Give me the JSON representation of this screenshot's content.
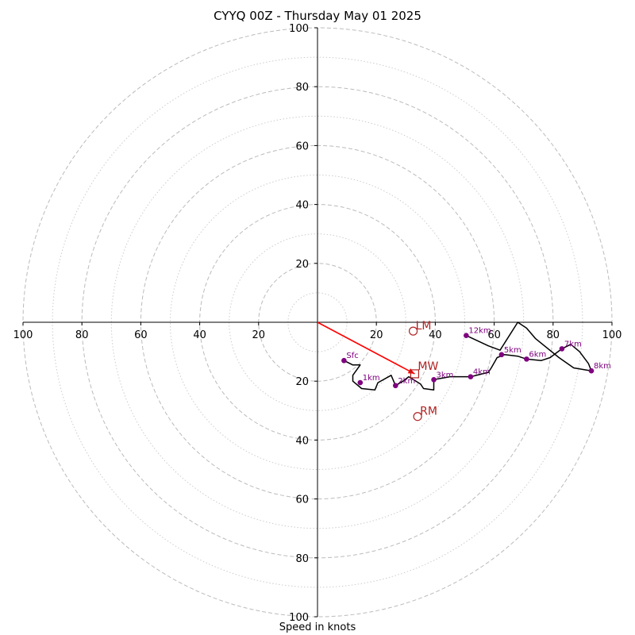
{
  "chart_data": {
    "type": "scatter",
    "title": "CYYQ 00Z - Thursday May 01 2025",
    "xlabel": "Speed in knots",
    "ylabel": "",
    "xlim": [
      -100,
      100
    ],
    "ylim": [
      -100,
      100
    ],
    "ring_major": [
      20,
      40,
      60,
      80,
      100
    ],
    "ring_minor": [
      10,
      30,
      50,
      70,
      90
    ],
    "x_ticks": [
      {
        "v": -100,
        "t": "100"
      },
      {
        "v": -80,
        "t": "80"
      },
      {
        "v": -60,
        "t": "60"
      },
      {
        "v": -40,
        "t": "40"
      },
      {
        "v": -20,
        "t": "20"
      },
      {
        "v": 20,
        "t": "20"
      },
      {
        "v": 40,
        "t": "40"
      },
      {
        "v": 60,
        "t": "60"
      },
      {
        "v": 80,
        "t": "80"
      },
      {
        "v": 100,
        "t": "100"
      }
    ],
    "y_ticks": [
      {
        "v": 100,
        "t": "100"
      },
      {
        "v": 80,
        "t": "80"
      },
      {
        "v": 60,
        "t": "60"
      },
      {
        "v": 40,
        "t": "40"
      },
      {
        "v": 20,
        "t": "20"
      },
      {
        "v": -20,
        "t": "20"
      },
      {
        "v": -40,
        "t": "40"
      },
      {
        "v": -60,
        "t": "60"
      },
      {
        "v": -80,
        "t": "80"
      },
      {
        "v": -100,
        "t": "100"
      }
    ],
    "hodograph": [
      [
        9,
        -13
      ],
      [
        12,
        -14.5
      ],
      [
        14.5,
        -14.5
      ],
      [
        12,
        -18
      ],
      [
        12,
        -20
      ],
      [
        15,
        -22.5
      ],
      [
        19.5,
        -23
      ],
      [
        20.5,
        -20.5
      ],
      [
        25,
        -18
      ],
      [
        26.5,
        -21.5
      ],
      [
        29,
        -20
      ],
      [
        31,
        -18.5
      ],
      [
        35,
        -21
      ],
      [
        36,
        -22.5
      ],
      [
        39.5,
        -23
      ],
      [
        39.5,
        -19.5
      ],
      [
        45,
        -18.5
      ],
      [
        52,
        -18.5
      ],
      [
        58,
        -17
      ],
      [
        59,
        -15.5
      ],
      [
        61,
        -12
      ],
      [
        63.5,
        -11
      ],
      [
        68,
        -11.5
      ],
      [
        71,
        -12.5
      ],
      [
        76,
        -13
      ],
      [
        79,
        -12
      ],
      [
        83,
        -9
      ],
      [
        86,
        -7.5
      ],
      [
        89,
        -10
      ],
      [
        92,
        -14
      ],
      [
        93,
        -16.5
      ],
      [
        87,
        -15.5
      ],
      [
        82,
        -12
      ],
      [
        74,
        -5.5
      ],
      [
        71,
        -2
      ],
      [
        68,
        0
      ],
      [
        62,
        -9.5
      ],
      [
        58,
        -8
      ],
      [
        50.5,
        -4.5
      ]
    ],
    "levels": [
      {
        "label": "Sfc",
        "x": 9,
        "y": -13
      },
      {
        "label": "1km",
        "x": 14.5,
        "y": -20.5
      },
      {
        "label": "2km",
        "x": 26.5,
        "y": -21.5
      },
      {
        "label": "3km",
        "x": 39.5,
        "y": -19.5
      },
      {
        "label": "4km",
        "x": 52,
        "y": -18.5
      },
      {
        "label": "5km",
        "x": 62.5,
        "y": -11
      },
      {
        "label": "6km",
        "x": 71,
        "y": -12.5
      },
      {
        "label": "7km",
        "x": 83,
        "y": -9
      },
      {
        "label": "8km",
        "x": 93,
        "y": -16.5
      },
      {
        "label": "12km",
        "x": 50.5,
        "y": -4.5
      }
    ],
    "mean_wind": {
      "label": "MW",
      "x": 33,
      "y": -17.5
    },
    "left_mover": {
      "label": "LM",
      "x": 32.5,
      "y": -3
    },
    "right_mover": {
      "label": "RM",
      "x": 34,
      "y": -32
    },
    "colors": {
      "hodograph": "#000000",
      "levels": "#800080",
      "motion": "#b22222",
      "arrow": "#ff0000",
      "grid": "#bbbbbb"
    }
  }
}
